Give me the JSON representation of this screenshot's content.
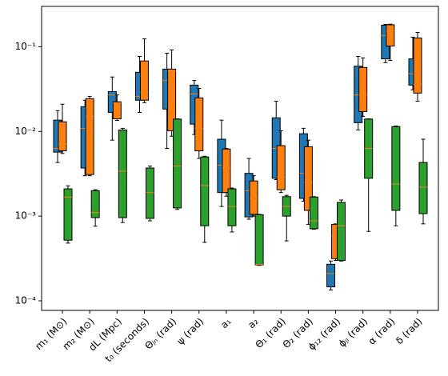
{
  "chart_data": {
    "type": "box",
    "log_y": true,
    "categories": [
      "m₁ (M⊙)",
      "m₂ (M⊙)",
      "dL (Mpc)",
      "t₀ (seconds)",
      "Θⱼₙ (rad)",
      "ψ (rad)",
      "a₁",
      "a₂",
      "Θ₁ (rad)",
      "Θ₂ (rad)",
      "ϕ₁₂ (rad)",
      "ϕⱼₗ (rad)",
      "α (rad)",
      "δ (rad)"
    ],
    "median_color": "#ff7f0e",
    "ylim": [
      7.7e-05,
      0.3
    ],
    "yticks": [
      {
        "value": 0.0001,
        "label": "10⁻⁴"
      },
      {
        "value": 0.001,
        "label": "10⁻³"
      },
      {
        "value": 0.01,
        "label": "10⁻²"
      },
      {
        "value": 0.1,
        "label": "10⁻¹"
      }
    ],
    "series": [
      {
        "color": "#1f77b4",
        "whislo": [
          0.0043,
          0.003,
          0.0079,
          0.0168,
          0.0063,
          0.0092,
          0.0013,
          0.00092,
          0.0027,
          0.0015,
          0.000134,
          0.0104,
          0.065,
          0.031
        ],
        "q1": [
          0.0057,
          0.0037,
          0.0168,
          0.0234,
          0.0184,
          0.0122,
          0.0019,
          0.00098,
          0.0028,
          0.00162,
          0.000146,
          0.0127,
          0.072,
          0.0353
        ],
        "med": [
          0.0063,
          0.0109,
          0.027,
          0.026,
          0.04,
          0.0277,
          0.004,
          0.002,
          0.0063,
          0.0032,
          0.00021,
          0.027,
          0.136,
          0.048
        ],
        "q3": [
          0.0136,
          0.0196,
          0.0296,
          0.05,
          0.0545,
          0.0353,
          0.0081,
          0.0032,
          0.0145,
          0.0094,
          0.00027,
          0.059,
          0.18,
          0.072
        ],
        "whishi": [
          0.0176,
          0.0234,
          0.044,
          0.077,
          0.084,
          0.04,
          0.0136,
          0.0048,
          0.0228,
          0.0109,
          0.000295,
          0.077,
          0.184,
          0.13
        ]
      },
      {
        "color": "#ff7f0e",
        "whislo": [
          0.0055,
          0.003,
          0.0135,
          0.0219,
          0.0088,
          0.0048,
          0.00172,
          0.001,
          0.0019,
          0.0008,
          0.0003,
          0.0151,
          0.069,
          0.0228
        ],
        "q1": [
          0.0059,
          0.0031,
          0.0141,
          0.0234,
          0.0102,
          0.0059,
          0.0019,
          0.00105,
          0.00205,
          0.00117,
          0.000315,
          0.0172,
          0.102,
          0.0284
        ],
        "med": [
          0.0071,
          0.0151,
          0.0218,
          0.029,
          0.052,
          0.0109,
          0.0037,
          0.00162,
          0.0029,
          0.0025,
          0.00058,
          0.027,
          0.154,
          0.036
        ],
        "q3": [
          0.013,
          0.0244,
          0.0224,
          0.068,
          0.0545,
          0.0249,
          0.0062,
          0.0026,
          0.0068,
          0.0066,
          0.0008,
          0.057,
          0.182,
          0.127
        ],
        "whishi": [
          0.021,
          0.026,
          0.027,
          0.124,
          0.092,
          0.0323,
          0.0063,
          0.003,
          0.0102,
          0.0079,
          0.00081,
          0.074,
          0.185,
          0.148
        ]
      },
      {
        "color": "#2ca02c",
        "whislo": [
          0.00048,
          0.00076,
          0.00084,
          0.00088,
          0.0012,
          0.00049,
          0.00065,
          0.000262,
          0.00051,
          0.0007,
          0.000295,
          0.00066,
          0.00077,
          0.00081
        ],
        "q1": [
          0.00052,
          0.00096,
          0.00096,
          0.00094,
          0.00125,
          0.00077,
          0.00077,
          0.000265,
          0.001,
          0.00071,
          0.0003,
          0.0028,
          0.00117,
          0.00107
        ],
        "med": [
          0.00168,
          0.0011,
          0.0034,
          0.0019,
          0.0039,
          0.0023,
          0.0013,
          0.000268,
          0.0013,
          0.00088,
          0.00077,
          0.0063,
          0.0024,
          0.0022
        ],
        "q3": [
          0.0021,
          0.002,
          0.0104,
          0.0037,
          0.014,
          0.005,
          0.0021,
          0.00104,
          0.0017,
          0.00168,
          0.00145,
          0.014,
          0.0114,
          0.0043
        ],
        "whishi": [
          0.00228,
          0.00205,
          0.0109,
          0.0039,
          0.0141,
          0.0051,
          0.00215,
          0.00105,
          0.00176,
          0.0017,
          0.00155,
          0.0141,
          0.0116,
          0.0081
        ]
      }
    ]
  }
}
